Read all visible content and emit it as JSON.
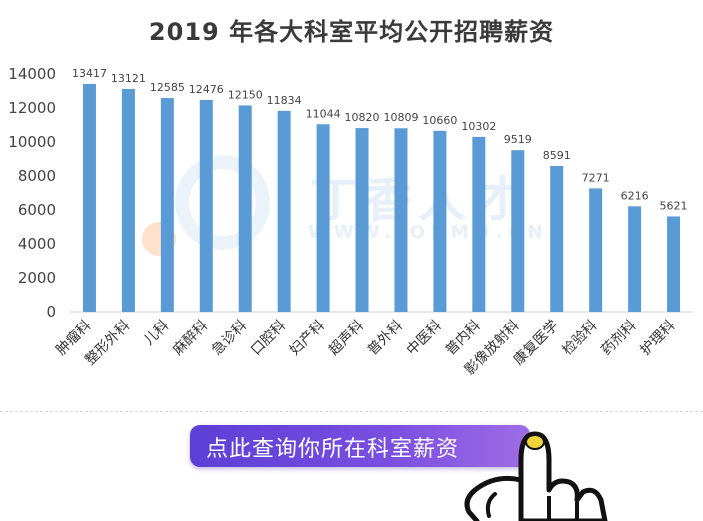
{
  "chart_data": {
    "type": "bar",
    "title": "2019 年各大科室平均公开招聘薪资",
    "categories": [
      "肿瘤科",
      "整形外科",
      "儿科",
      "麻醉科",
      "急诊科",
      "口腔科",
      "妇产科",
      "超声科",
      "普外科",
      "中医科",
      "普内科",
      "影像放射科",
      "康复医学",
      "检验科",
      "药剂科",
      "护理科"
    ],
    "values": [
      13417,
      13121,
      12585,
      12476,
      12150,
      11834,
      11044,
      10820,
      10809,
      10660,
      10302,
      9519,
      8591,
      7271,
      6216,
      5621
    ],
    "ylim": [
      0,
      14000
    ],
    "yticks": [
      0,
      2000,
      4000,
      6000,
      8000,
      10000,
      12000,
      14000
    ],
    "xlabel": "",
    "ylabel": "",
    "grid": false,
    "bar_color": "#5b9bd5"
  },
  "watermark": {
    "text": "丁香人才",
    "subtext": "WWW.JOBMD.CN"
  },
  "cta": {
    "label": "点此查询你所在科室薪资"
  },
  "icons": {
    "hand": "pointing-hand-icon"
  }
}
